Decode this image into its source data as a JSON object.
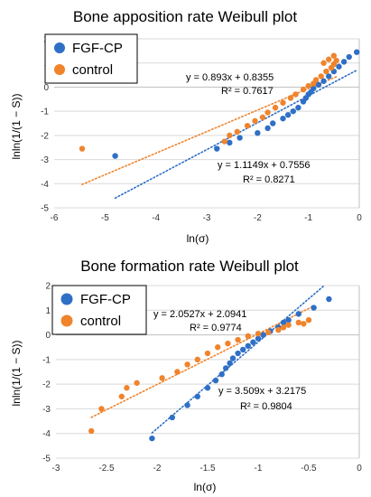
{
  "colors": {
    "fgf": "#2f6fc6",
    "control": "#f0842c",
    "grid": "#d9d9d9",
    "axis": "#bfbfbf"
  },
  "chart_data": [
    {
      "type": "scatter",
      "title": "Bone apposition rate Weibull plot",
      "xlabel": "ln(σ)",
      "ylabel": "lnln(1/(1 − S))",
      "xlim": [
        -6,
        0
      ],
      "ylim": [
        -5,
        2
      ],
      "xticks": [
        "-6",
        "-5",
        "-4",
        "-3",
        "-2",
        "-1",
        "0"
      ],
      "yticks": [
        "-5",
        "-4",
        "-3",
        "-2",
        "-1",
        "0",
        "1",
        "2"
      ],
      "grid": "horizontal",
      "legend": "top-left",
      "series": [
        {
          "name": "FGF-CP",
          "color": "#2f6fc6",
          "points": [
            [
              -4.8,
              -2.85
            ],
            [
              -2.8,
              -2.55
            ],
            [
              -2.55,
              -2.3
            ],
            [
              -2.35,
              -2.1
            ],
            [
              -2.0,
              -1.9
            ],
            [
              -1.8,
              -1.7
            ],
            [
              -1.7,
              -1.5
            ],
            [
              -1.5,
              -1.3
            ],
            [
              -1.4,
              -1.15
            ],
            [
              -1.3,
              -1.0
            ],
            [
              -1.2,
              -0.85
            ],
            [
              -1.1,
              -0.6
            ],
            [
              -1.05,
              -0.45
            ],
            [
              -1.0,
              -0.3
            ],
            [
              -0.95,
              -0.2
            ],
            [
              -0.9,
              -0.05
            ],
            [
              -0.8,
              0.1
            ],
            [
              -0.7,
              0.25
            ],
            [
              -0.6,
              0.45
            ],
            [
              -0.5,
              0.65
            ],
            [
              -0.4,
              0.85
            ],
            [
              -0.3,
              1.05
            ],
            [
              -0.2,
              1.25
            ],
            [
              -0.05,
              1.45
            ]
          ],
          "trendline": {
            "slope": 1.1149,
            "intercept": 0.7556,
            "x": [
              -4.8,
              -0.05
            ]
          },
          "equation": "y = 1.1149x + 0.7556",
          "r2": "R² = 0.8271"
        },
        {
          "name": "control",
          "color": "#f0842c",
          "points": [
            [
              -5.45,
              -2.55
            ],
            [
              -2.65,
              -2.25
            ],
            [
              -2.55,
              -2.0
            ],
            [
              -2.4,
              -1.85
            ],
            [
              -2.2,
              -1.6
            ],
            [
              -2.05,
              -1.4
            ],
            [
              -1.9,
              -1.25
            ],
            [
              -1.8,
              -1.05
            ],
            [
              -1.65,
              -0.85
            ],
            [
              -1.5,
              -0.65
            ],
            [
              -1.35,
              -0.45
            ],
            [
              -1.25,
              -0.3
            ],
            [
              -1.1,
              -0.1
            ],
            [
              -1.0,
              0.05
            ],
            [
              -0.9,
              0.15
            ],
            [
              -0.85,
              0.3
            ],
            [
              -0.75,
              0.45
            ],
            [
              -0.65,
              0.65
            ],
            [
              -0.55,
              0.8
            ],
            [
              -0.5,
              0.95
            ],
            [
              -0.45,
              1.1
            ],
            [
              -0.5,
              1.3
            ],
            [
              -0.7,
              1.0
            ],
            [
              -0.6,
              1.15
            ]
          ],
          "trendline": {
            "slope": 0.893,
            "intercept": 0.8355,
            "x": [
              -5.45,
              -0.45
            ]
          },
          "equation": "y = 0.893x + 0.8355",
          "r2": "R² = 0.7617"
        }
      ]
    },
    {
      "type": "scatter",
      "title": "Bone formation rate Weibull plot",
      "xlabel": "ln(σ)",
      "ylabel": "lnln(1/(1 − S))",
      "xlim": [
        -3,
        0
      ],
      "ylim": [
        -5,
        2
      ],
      "xticks": [
        "-3",
        "-2.5",
        "-2",
        "-1.5",
        "-1",
        "-0.5",
        "0"
      ],
      "yticks": [
        "-5",
        "-4",
        "-3",
        "-2",
        "-1",
        "0",
        "1",
        "2"
      ],
      "grid": "horizontal",
      "legend": "top-left",
      "series": [
        {
          "name": "FGF-CP",
          "color": "#2f6fc6",
          "points": [
            [
              -2.05,
              -4.2
            ],
            [
              -1.85,
              -3.35
            ],
            [
              -1.7,
              -2.85
            ],
            [
              -1.6,
              -2.5
            ],
            [
              -1.5,
              -2.15
            ],
            [
              -1.42,
              -1.85
            ],
            [
              -1.36,
              -1.6
            ],
            [
              -1.32,
              -1.35
            ],
            [
              -1.28,
              -1.15
            ],
            [
              -1.25,
              -0.95
            ],
            [
              -1.2,
              -0.75
            ],
            [
              -1.15,
              -0.6
            ],
            [
              -1.1,
              -0.45
            ],
            [
              -1.05,
              -0.3
            ],
            [
              -1.0,
              -0.15
            ],
            [
              -0.95,
              0.0
            ],
            [
              -0.88,
              0.15
            ],
            [
              -0.8,
              0.3
            ],
            [
              -0.75,
              0.5
            ],
            [
              -0.7,
              0.6
            ],
            [
              -0.6,
              0.85
            ],
            [
              -0.45,
              1.1
            ],
            [
              -0.3,
              1.45
            ]
          ],
          "trendline": {
            "slope": 3.509,
            "intercept": 3.2175,
            "x": [
              -2.05,
              -0.35
            ]
          },
          "equation": "y = 3.509x + 3.2175",
          "r2": "R² = 0.9804"
        },
        {
          "name": "control",
          "color": "#f0842c",
          "points": [
            [
              -2.65,
              -3.9
            ],
            [
              -2.55,
              -3.0
            ],
            [
              -2.35,
              -2.5
            ],
            [
              -2.3,
              -2.15
            ],
            [
              -2.2,
              -1.95
            ],
            [
              -1.95,
              -1.75
            ],
            [
              -1.8,
              -1.5
            ],
            [
              -1.7,
              -1.2
            ],
            [
              -1.6,
              -1.0
            ],
            [
              -1.5,
              -0.75
            ],
            [
              -1.4,
              -0.5
            ],
            [
              -1.3,
              -0.35
            ],
            [
              -1.2,
              -0.2
            ],
            [
              -1.1,
              -0.05
            ],
            [
              -1.0,
              0.05
            ],
            [
              -0.9,
              0.1
            ],
            [
              -0.8,
              0.2
            ],
            [
              -0.75,
              0.3
            ],
            [
              -0.7,
              0.4
            ],
            [
              -0.6,
              0.5
            ],
            [
              -0.5,
              0.6
            ],
            [
              -0.55,
              0.45
            ]
          ],
          "trendline": {
            "slope": 2.0527,
            "intercept": 2.0941,
            "x": [
              -2.65,
              -0.45
            ]
          },
          "equation": "y = 2.0527x + 2.0941",
          "r2": "R² = 0.9774"
        }
      ]
    }
  ]
}
